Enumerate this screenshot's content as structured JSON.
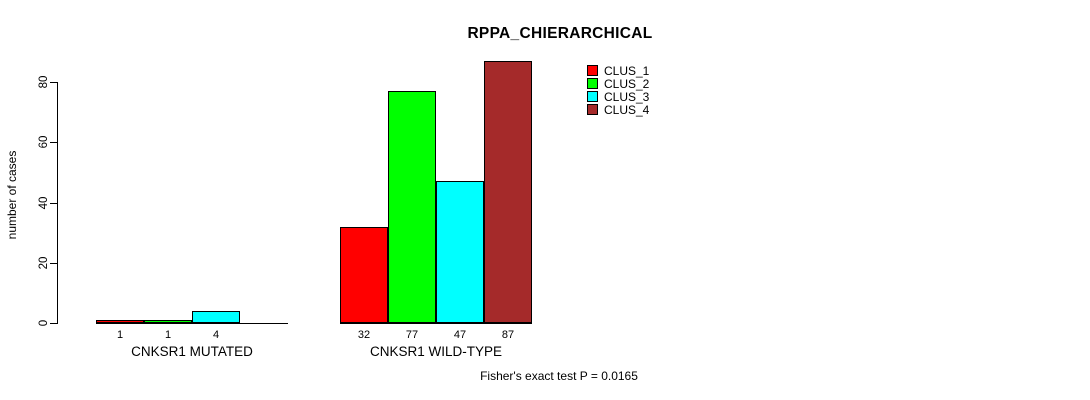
{
  "chart_data": {
    "type": "bar",
    "title": "RPPA_CHIERARCHICAL",
    "xlabel": "",
    "ylabel": "number of cases",
    "ylim": [
      0,
      87
    ],
    "yticks": [
      0,
      20,
      40,
      60,
      80
    ],
    "grid": false,
    "legend_position": "top-right",
    "categories": [
      "CNKSR1 MUTATED",
      "CNKSR1 WILD-TYPE"
    ],
    "series": [
      {
        "name": "CLUS_1",
        "color": "#FF0000",
        "values": [
          1,
          32
        ]
      },
      {
        "name": "CLUS_2",
        "color": "#00FF00",
        "values": [
          1,
          77
        ]
      },
      {
        "name": "CLUS_3",
        "color": "#00FFFF",
        "values": [
          4,
          47
        ]
      },
      {
        "name": "CLUS_4",
        "color": "#A52A2A",
        "values": [
          0,
          87
        ]
      }
    ],
    "bar_labels": [
      [
        "1",
        "1",
        "4",
        ""
      ],
      [
        "32",
        "77",
        "47",
        "87"
      ]
    ],
    "annotation": "Fisher's exact test P = 0.0165"
  },
  "colors": {
    "axis": "#000000",
    "background": "#FFFFFF"
  }
}
